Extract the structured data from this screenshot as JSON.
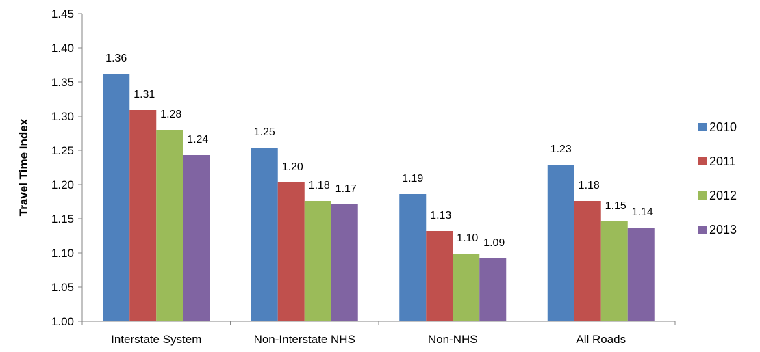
{
  "chart_data": {
    "type": "bar",
    "title": "",
    "xlabel": "",
    "ylabel": "Travel Time Index",
    "ylim": [
      1.0,
      1.45
    ],
    "yticks": [
      "1.00",
      "1.05",
      "1.10",
      "1.15",
      "1.20",
      "1.25",
      "1.30",
      "1.35",
      "1.40",
      "1.45"
    ],
    "grid": false,
    "legend_position": "right",
    "categories": [
      "Interstate System",
      "Non-Interstate NHS",
      "Non-NHS",
      "All Roads"
    ],
    "series": [
      {
        "name": "2010",
        "color": "#4F81BD",
        "values": [
          1.362,
          1.254,
          1.186,
          1.229
        ],
        "labels": [
          "1.36",
          "1.25",
          "1.19",
          "1.23"
        ]
      },
      {
        "name": "2011",
        "color": "#C0504D",
        "values": [
          1.309,
          1.203,
          1.132,
          1.176
        ],
        "labels": [
          "1.31",
          "1.20",
          "1.13",
          "1.18"
        ]
      },
      {
        "name": "2012",
        "color": "#9BBB59",
        "values": [
          1.28,
          1.176,
          1.099,
          1.146
        ],
        "labels": [
          "1.28",
          "1.18",
          "1.10",
          "1.15"
        ]
      },
      {
        "name": "2013",
        "color": "#8064A2",
        "values": [
          1.243,
          1.171,
          1.092,
          1.137
        ],
        "labels": [
          "1.24",
          "1.17",
          "1.09",
          "1.14"
        ]
      }
    ]
  }
}
